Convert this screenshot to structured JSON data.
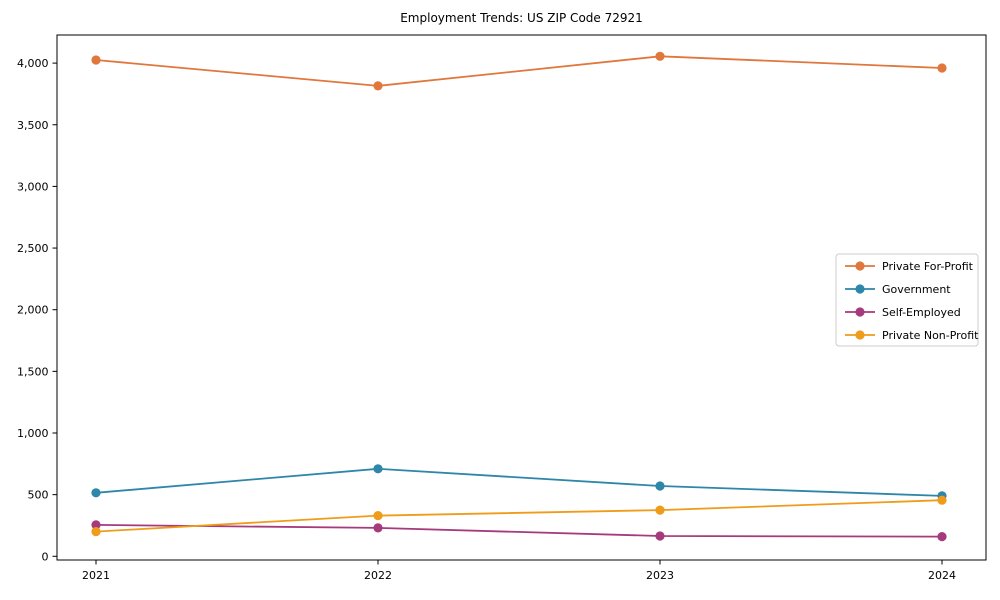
{
  "chart_data": {
    "type": "line",
    "title": "Employment Trends: US ZIP Code 72921",
    "xlabel": "",
    "ylabel": "",
    "x": [
      2021,
      2022,
      2023,
      2024
    ],
    "x_tick_labels": [
      "2021",
      "2022",
      "2023",
      "2024"
    ],
    "y_tick_values": [
      0,
      500,
      1000,
      1500,
      2000,
      2500,
      3000,
      3500,
      4000
    ],
    "y_tick_labels": [
      "0",
      "500",
      "1,000",
      "1,500",
      "2,000",
      "2,500",
      "3,000",
      "3,500",
      "4,000"
    ],
    "ylim": [
      -30,
      4228
    ],
    "grid": false,
    "legend_position": "center-right",
    "series": [
      {
        "name": "Private For-Profit",
        "color": "#e0773c",
        "values": [
          4025,
          3815,
          4055,
          3960
        ]
      },
      {
        "name": "Government",
        "color": "#2e86a8",
        "values": [
          515,
          710,
          570,
          490
        ]
      },
      {
        "name": "Self-Employed",
        "color": "#a53a7d",
        "values": [
          255,
          230,
          165,
          160
        ]
      },
      {
        "name": "Private Non-Profit",
        "color": "#f09c1b",
        "values": [
          200,
          330,
          375,
          455
        ]
      }
    ],
    "plot_background": "#ffffff",
    "spine_color": "#000000"
  }
}
